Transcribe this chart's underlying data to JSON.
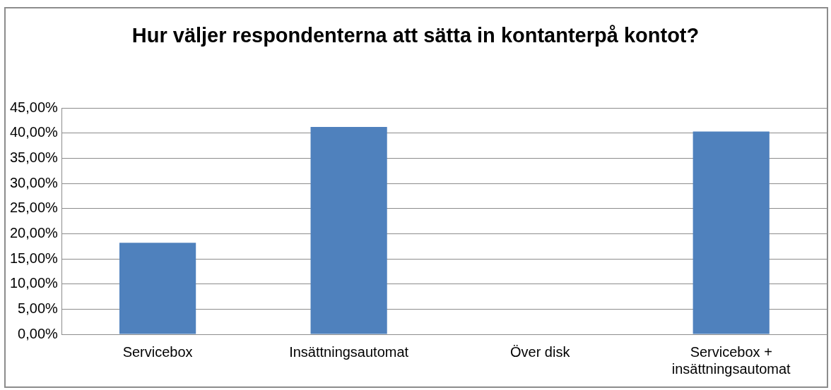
{
  "chart_data": {
    "type": "bar",
    "title": "Hur väljer respondenterna att sätta in kontanterpå kontot?",
    "categories": [
      "Servicebox",
      "Insättningsautomat",
      "Över disk",
      "Servicebox + insättningsautomat"
    ],
    "values": [
      18.2,
      41.2,
      0,
      40.3
    ],
    "color": "#4f81bd",
    "ylim": [
      0,
      45
    ],
    "yticks": [
      {
        "value": 0,
        "label": "0,00%"
      },
      {
        "value": 5,
        "label": "5,00%"
      },
      {
        "value": 10,
        "label": "10,00%"
      },
      {
        "value": 15,
        "label": "15,00%"
      },
      {
        "value": 20,
        "label": "20,00%"
      },
      {
        "value": 25,
        "label": "25,00%"
      },
      {
        "value": 30,
        "label": "30,00%"
      },
      {
        "value": 35,
        "label": "35,00%"
      },
      {
        "value": 40,
        "label": "40,00%"
      },
      {
        "value": 45,
        "label": "45,00%"
      }
    ],
    "grid": "y",
    "legend": false
  }
}
